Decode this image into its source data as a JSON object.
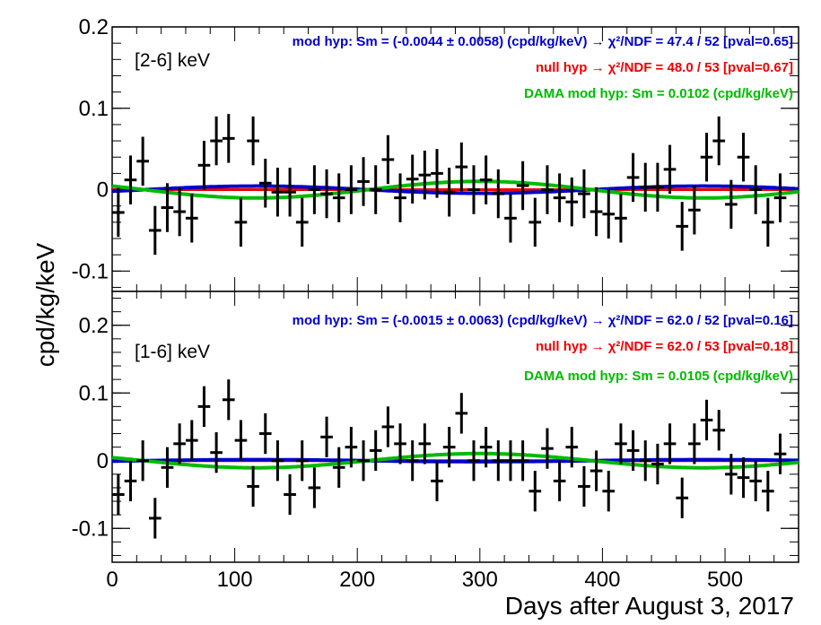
{
  "figure": {
    "xlabel": "Days after August 3, 2017",
    "ylabel": "cpd/kg/keV"
  },
  "colors": {
    "mod": "#0000cc",
    "null": "#ee0000",
    "dama": "#00bb00",
    "data": "#000000"
  },
  "chart_data": [
    {
      "type": "scatter",
      "panel": "top",
      "energy_label": "[2-6] keV",
      "xlim": [
        0,
        560
      ],
      "ylim": [
        -0.125,
        0.2
      ],
      "yticks": [
        -0.1,
        0,
        0.1,
        0.2
      ],
      "ytick_labels": [
        "-0.1",
        "0",
        "0.1",
        "0.2"
      ],
      "legend": [
        {
          "key": "mod",
          "text": "mod hyp: Sm = (-0.0044 ± 0.0058) (cpd/kg/keV) → χ²/NDF = 47.4 / 52 [pval=0.65]"
        },
        {
          "key": "null",
          "text": "null hyp → χ²/NDF = 48.0 / 53 [pval=0.67]"
        },
        {
          "key": "dama",
          "text": "DAMA mod hyp: Sm = 0.0102 (cpd/kg/keV)"
        }
      ],
      "fits": {
        "mod_amplitude": -0.0044,
        "null_level": 0.0,
        "dama_amplitude": 0.0102,
        "phase_day": 300,
        "period_days": 365.25
      },
      "x": [
        5,
        15,
        25,
        35,
        45,
        55,
        65,
        75,
        85,
        95,
        105,
        115,
        125,
        135,
        145,
        155,
        165,
        175,
        185,
        195,
        205,
        215,
        225,
        235,
        245,
        255,
        265,
        275,
        285,
        295,
        305,
        315,
        325,
        335,
        345,
        355,
        365,
        375,
        385,
        395,
        405,
        415,
        425,
        435,
        445,
        455,
        465,
        475,
        485,
        495,
        505,
        515,
        525,
        535,
        545
      ],
      "y": [
        -0.028,
        0.012,
        0.035,
        -0.05,
        -0.022,
        -0.027,
        -0.035,
        0.03,
        0.06,
        0.063,
        -0.04,
        0.06,
        0.008,
        -0.003,
        -0.003,
        -0.04,
        0.0,
        -0.005,
        -0.01,
        0.0,
        0.01,
        0.0,
        0.037,
        -0.01,
        0.013,
        0.018,
        0.02,
        -0.003,
        0.028,
        0.0,
        0.012,
        -0.005,
        -0.035,
        0.005,
        -0.04,
        0.0,
        -0.01,
        -0.015,
        -0.005,
        -0.027,
        -0.03,
        -0.035,
        0.015,
        0.003,
        0.003,
        0.025,
        -0.045,
        -0.025,
        0.04,
        0.06,
        -0.018,
        0.04,
        0.0,
        -0.04,
        -0.01
      ],
      "yerr": 0.03
    },
    {
      "type": "scatter",
      "panel": "bottom",
      "energy_label": "[1-6] keV",
      "xlim": [
        0,
        560
      ],
      "ylim": [
        -0.15,
        0.25
      ],
      "yticks": [
        -0.1,
        0,
        0.1,
        0.2
      ],
      "ytick_labels": [
        "-0.1",
        "0",
        "0.1",
        "0.2"
      ],
      "xticks": [
        0,
        100,
        200,
        300,
        400,
        500
      ],
      "xtick_labels": [
        "0",
        "100",
        "200",
        "300",
        "400",
        "500"
      ],
      "legend": [
        {
          "key": "mod",
          "text": "mod hyp: Sm = (-0.0015 ± 0.0063) (cpd/kg/keV) → χ²/NDF = 62.0 / 52 [pval=0.16]"
        },
        {
          "key": "null",
          "text": "null hyp → χ²/NDF = 62.0 / 53 [pval=0.18]"
        },
        {
          "key": "dama",
          "text": "DAMA mod hyp: Sm = 0.0105 (cpd/kg/keV)"
        }
      ],
      "fits": {
        "mod_amplitude": -0.0015,
        "null_level": 0.0,
        "dama_amplitude": 0.0105,
        "phase_day": 300,
        "period_days": 365.25
      },
      "x": [
        5,
        15,
        25,
        35,
        45,
        55,
        65,
        75,
        85,
        95,
        105,
        115,
        125,
        135,
        145,
        155,
        165,
        175,
        185,
        195,
        205,
        215,
        225,
        235,
        245,
        255,
        265,
        275,
        285,
        295,
        305,
        315,
        325,
        335,
        345,
        355,
        365,
        375,
        385,
        395,
        405,
        415,
        425,
        435,
        445,
        455,
        465,
        475,
        485,
        495,
        505,
        515,
        525,
        535,
        545
      ],
      "y": [
        -0.05,
        -0.03,
        0.0,
        -0.085,
        -0.01,
        0.025,
        0.03,
        0.08,
        0.012,
        0.09,
        0.03,
        -0.038,
        0.04,
        0.0,
        -0.05,
        0.0,
        -0.04,
        0.035,
        -0.01,
        0.02,
        0.0,
        0.015,
        0.05,
        0.025,
        0.0,
        0.025,
        -0.03,
        0.02,
        0.07,
        0.0,
        0.02,
        0.0,
        0.0,
        0.0,
        -0.045,
        0.018,
        -0.03,
        0.02,
        -0.038,
        -0.015,
        -0.045,
        0.025,
        0.015,
        0.0,
        -0.005,
        0.025,
        -0.055,
        0.025,
        0.06,
        0.045,
        -0.02,
        -0.025,
        -0.03,
        -0.045,
        0.01
      ],
      "yerr": 0.03
    }
  ]
}
